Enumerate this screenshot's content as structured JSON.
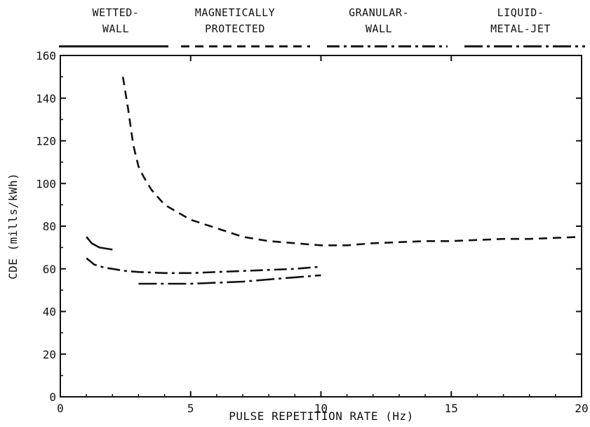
{
  "chart_data": {
    "type": "line",
    "title": "",
    "xlabel": "PULSE REPETITION RATE  (Hz)",
    "ylabel": "CDE (mills/kWh)",
    "xlim": [
      0,
      20
    ],
    "ylim": [
      0,
      160
    ],
    "xticks": [
      0,
      5,
      10,
      15,
      20
    ],
    "yticks": [
      0,
      20,
      40,
      60,
      80,
      100,
      120,
      140,
      160
    ],
    "grid": false,
    "legend_placement": "top",
    "series": [
      {
        "name": "WETTED- WALL",
        "line_style": "solid",
        "x": [
          1.0,
          1.2,
          1.5,
          2.0
        ],
        "y": [
          75,
          72,
          70,
          69
        ]
      },
      {
        "name": "MAGNETICALLY PROTECTED",
        "line_style": "dashed",
        "x": [
          2.4,
          2.6,
          2.8,
          3.0,
          3.2,
          3.5,
          4.0,
          5.0,
          6.0,
          7.0,
          8.0,
          9.0,
          10.0,
          11.0,
          12.0,
          13.0,
          14.0,
          15.0,
          16.0,
          17.0,
          18.0,
          19.0,
          20.0
        ],
        "y": [
          150,
          135,
          118,
          108,
          103,
          97,
          90,
          83,
          79,
          75,
          73,
          72,
          71,
          71,
          72,
          72.5,
          73,
          73,
          73.5,
          74,
          74,
          74.5,
          75
        ]
      },
      {
        "name": "GRANULAR- WALL",
        "line_style": "dash-dot",
        "x": [
          1.0,
          1.3,
          1.7,
          2.0,
          2.5,
          3.0,
          4.0,
          5.0,
          6.0,
          7.0,
          8.0,
          9.0,
          10.0
        ],
        "y": [
          65,
          62,
          60.5,
          60,
          59,
          58.5,
          58,
          58,
          58.5,
          59,
          59.5,
          60,
          61
        ]
      },
      {
        "name": "LIQUID- METAL-JET",
        "line_style": "long-dash-dot",
        "x": [
          3.0,
          4.0,
          5.0,
          6.0,
          7.0,
          8.0,
          9.0,
          10.0
        ],
        "y": [
          53,
          53,
          53,
          53.5,
          54,
          55,
          56,
          57
        ]
      }
    ],
    "legend": [
      {
        "line1": "WETTED-",
        "line2": "WALL",
        "style": "solid"
      },
      {
        "line1": "MAGNETICALLY",
        "line2": "PROTECTED",
        "style": "dashed"
      },
      {
        "line1": "GRANULAR-",
        "line2": "WALL",
        "style": "dash-dot"
      },
      {
        "line1": "LIQUID-",
        "line2": "METAL-JET",
        "style": "long-dash-dot"
      }
    ],
    "colors": {
      "ink": "#111111",
      "background": "#ffffff"
    }
  }
}
